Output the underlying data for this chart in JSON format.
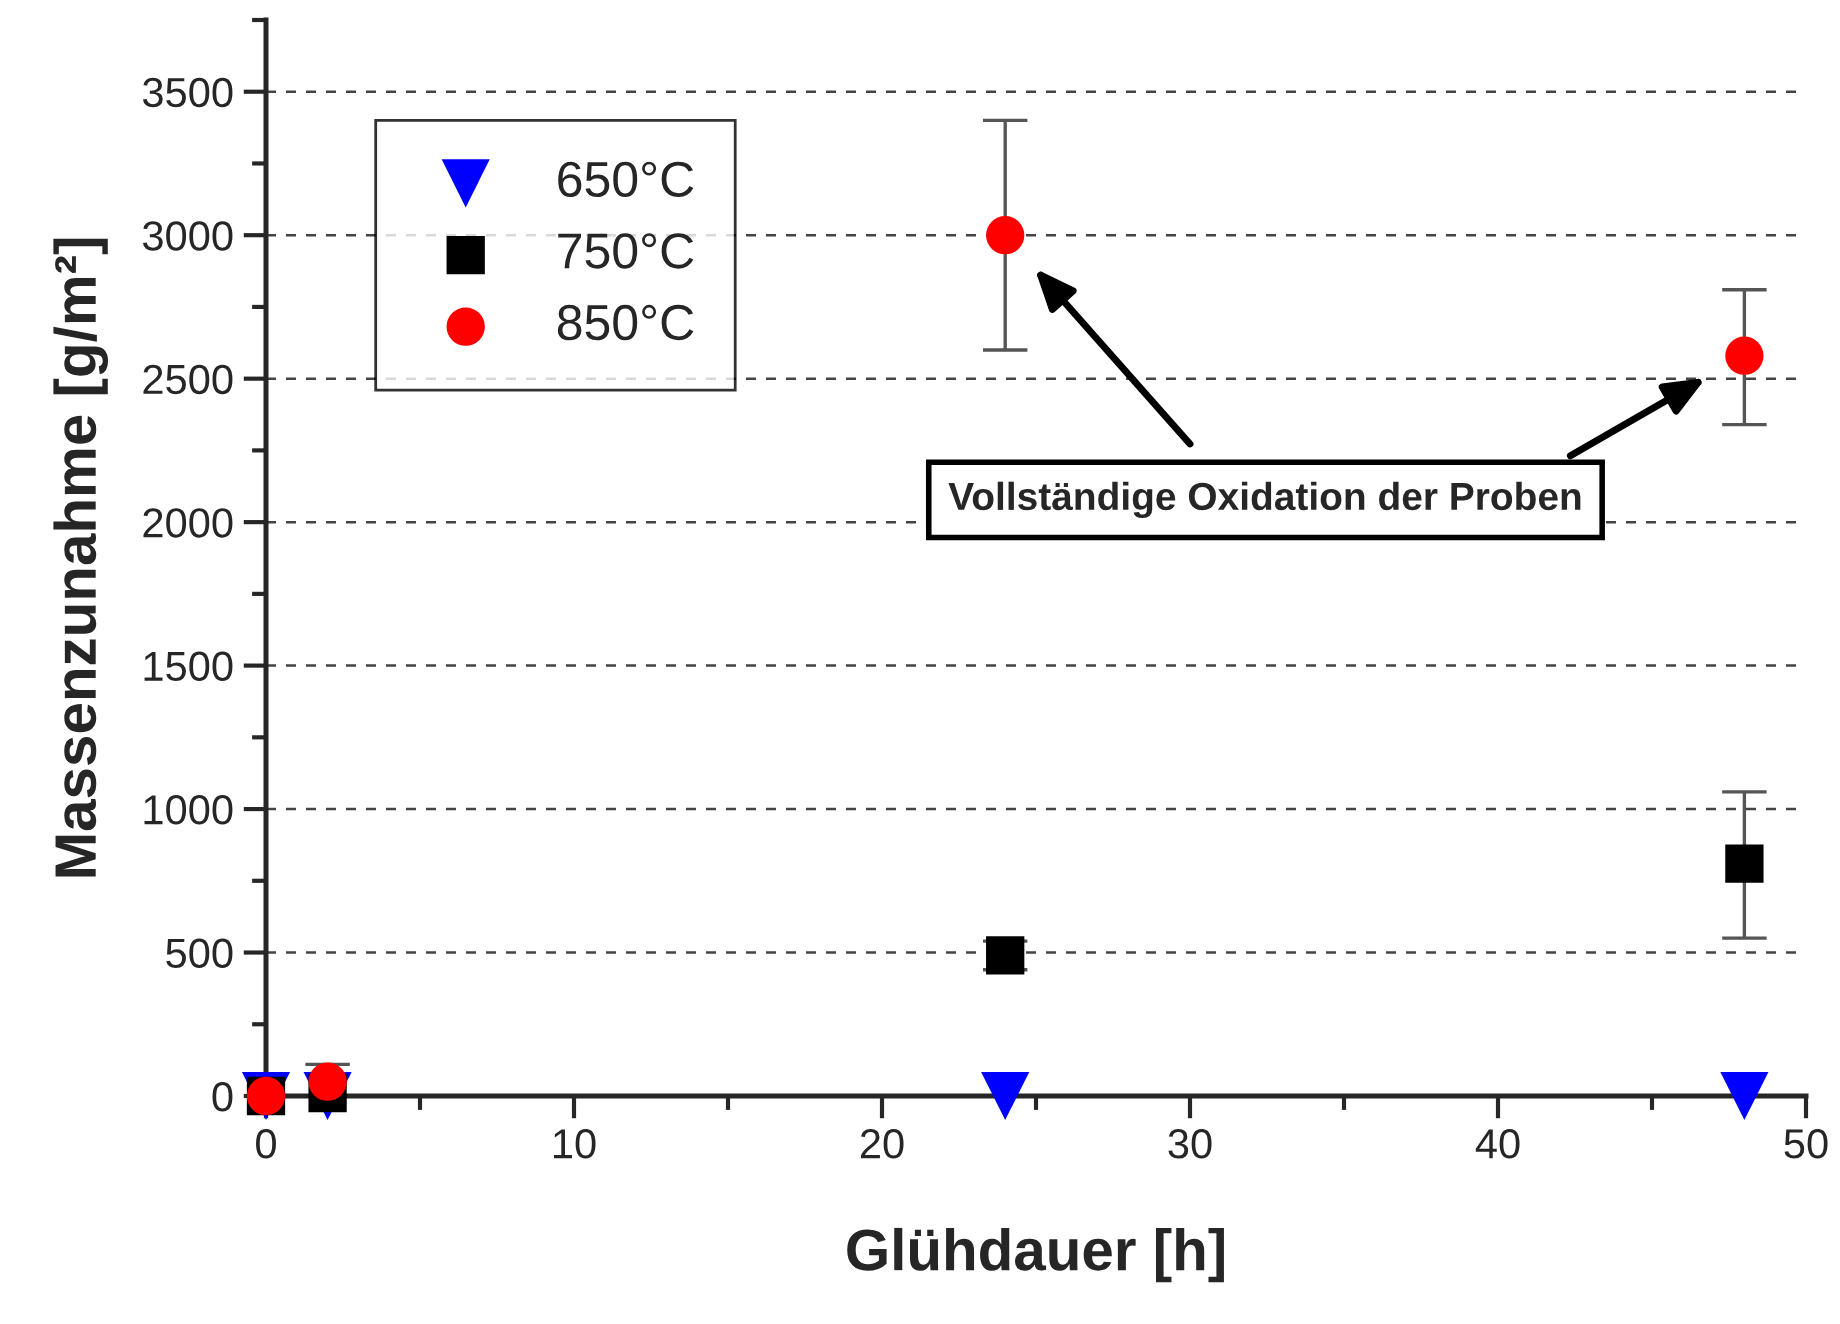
{
  "chart_data": {
    "type": "scatter",
    "xlabel": "Glühdauer [h]",
    "ylabel": "Massenzunahme [g/m²]",
    "xlim": [
      0,
      50
    ],
    "xticks": [
      0,
      10,
      20,
      30,
      40,
      50
    ],
    "ylim": [
      0,
      3750
    ],
    "yticks": [
      0,
      500,
      1000,
      1500,
      2000,
      2500,
      3000,
      3500
    ],
    "grid": "y",
    "legend": "top left",
    "series": [
      {
        "name": "650°C",
        "color": "#0000ff",
        "marker": "triangle",
        "x": [
          0,
          2,
          24,
          48
        ],
        "values": [
          0,
          0,
          0,
          0
        ]
      },
      {
        "name": "750°C",
        "color": "#000000",
        "marker": "square",
        "x": [
          0,
          2,
          24,
          48
        ],
        "values": [
          0,
          10,
          490,
          810
        ],
        "errors": [
          null,
          null,
          [
            440,
            540
          ],
          [
            550,
            1060
          ]
        ]
      },
      {
        "name": "850°C",
        "color": "#ff0000",
        "marker": "circle",
        "x": [
          0,
          2,
          24,
          48
        ],
        "values": [
          0,
          50,
          3000,
          2580
        ],
        "errors": [
          null,
          60,
          [
            2600,
            3400
          ],
          [
            2340,
            2810
          ]
        ]
      }
    ],
    "annotations": [
      "Vollständige Oxidation der Proben"
    ]
  }
}
